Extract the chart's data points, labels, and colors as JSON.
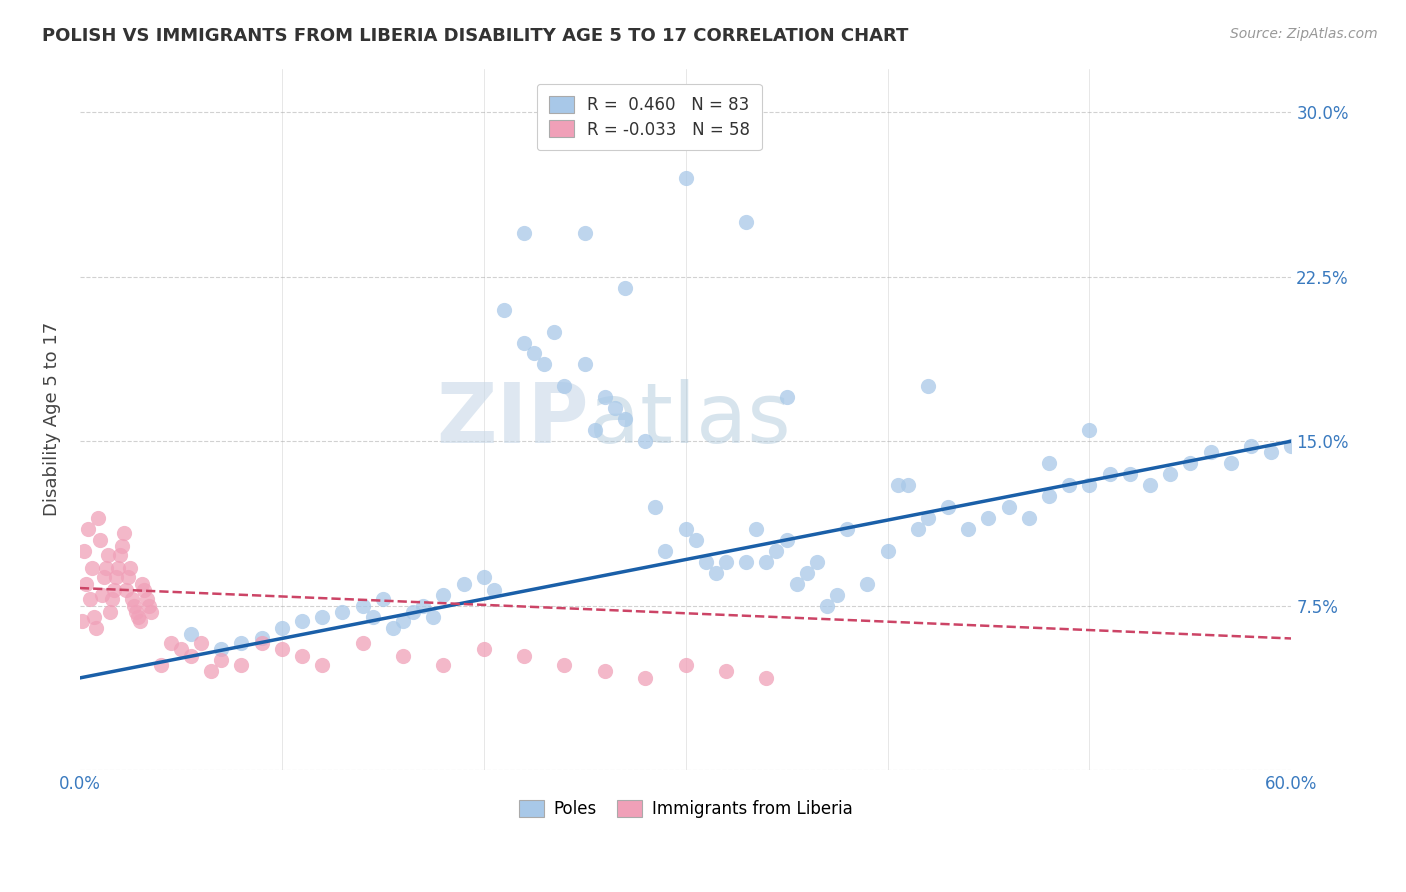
{
  "title": "POLISH VS IMMIGRANTS FROM LIBERIA DISABILITY AGE 5 TO 17 CORRELATION CHART",
  "source": "Source: ZipAtlas.com",
  "ylabel": "Disability Age 5 to 17",
  "x_min": 0.0,
  "x_max": 0.6,
  "y_min": 0.0,
  "y_max": 0.32,
  "x_ticks": [
    0.0,
    0.1,
    0.2,
    0.3,
    0.4,
    0.5,
    0.6
  ],
  "x_tick_labels": [
    "0.0%",
    "",
    "",
    "",
    "",
    "",
    "60.0%"
  ],
  "y_ticks": [
    0.0,
    0.075,
    0.15,
    0.225,
    0.3
  ],
  "y_tick_labels": [
    "",
    "7.5%",
    "15.0%",
    "22.5%",
    "30.0%"
  ],
  "blue_R": 0.46,
  "blue_N": 83,
  "pink_R": -0.033,
  "pink_N": 58,
  "blue_color": "#a8c8e8",
  "pink_color": "#f0a0b8",
  "blue_line_color": "#1a5fa8",
  "pink_line_color": "#cc4466",
  "watermark_zip": "ZIP",
  "watermark_atlas": "atlas",
  "legend_blue_label": "Poles",
  "legend_pink_label": "Immigrants from Liberia",
  "blue_scatter_x": [
    0.055,
    0.07,
    0.08,
    0.09,
    0.1,
    0.11,
    0.12,
    0.13,
    0.14,
    0.145,
    0.15,
    0.155,
    0.16,
    0.165,
    0.17,
    0.175,
    0.18,
    0.19,
    0.2,
    0.205,
    0.21,
    0.22,
    0.225,
    0.23,
    0.235,
    0.24,
    0.25,
    0.255,
    0.26,
    0.265,
    0.27,
    0.28,
    0.285,
    0.29,
    0.3,
    0.305,
    0.31,
    0.315,
    0.32,
    0.33,
    0.335,
    0.34,
    0.345,
    0.35,
    0.355,
    0.36,
    0.365,
    0.37,
    0.375,
    0.38,
    0.39,
    0.4,
    0.405,
    0.41,
    0.415,
    0.42,
    0.43,
    0.44,
    0.45,
    0.46,
    0.47,
    0.48,
    0.49,
    0.5,
    0.51,
    0.52,
    0.53,
    0.54,
    0.55,
    0.56,
    0.57,
    0.58,
    0.59,
    0.6,
    0.3,
    0.33,
    0.22,
    0.25,
    0.27,
    0.35,
    0.42,
    0.5,
    0.48
  ],
  "blue_scatter_y": [
    0.062,
    0.055,
    0.058,
    0.06,
    0.065,
    0.068,
    0.07,
    0.072,
    0.075,
    0.07,
    0.078,
    0.065,
    0.068,
    0.072,
    0.075,
    0.07,
    0.08,
    0.085,
    0.088,
    0.082,
    0.21,
    0.195,
    0.19,
    0.185,
    0.2,
    0.175,
    0.185,
    0.155,
    0.17,
    0.165,
    0.16,
    0.15,
    0.12,
    0.1,
    0.11,
    0.105,
    0.095,
    0.09,
    0.095,
    0.095,
    0.11,
    0.095,
    0.1,
    0.105,
    0.085,
    0.09,
    0.095,
    0.075,
    0.08,
    0.11,
    0.085,
    0.1,
    0.13,
    0.13,
    0.11,
    0.115,
    0.12,
    0.11,
    0.115,
    0.12,
    0.115,
    0.125,
    0.13,
    0.13,
    0.135,
    0.135,
    0.13,
    0.135,
    0.14,
    0.145,
    0.14,
    0.148,
    0.145,
    0.148,
    0.27,
    0.25,
    0.245,
    0.245,
    0.22,
    0.17,
    0.175,
    0.155,
    0.14
  ],
  "pink_scatter_x": [
    0.001,
    0.002,
    0.003,
    0.004,
    0.005,
    0.006,
    0.007,
    0.008,
    0.009,
    0.01,
    0.011,
    0.012,
    0.013,
    0.014,
    0.015,
    0.016,
    0.017,
    0.018,
    0.019,
    0.02,
    0.021,
    0.022,
    0.023,
    0.024,
    0.025,
    0.026,
    0.027,
    0.028,
    0.029,
    0.03,
    0.031,
    0.032,
    0.033,
    0.034,
    0.035,
    0.04,
    0.045,
    0.05,
    0.055,
    0.06,
    0.065,
    0.07,
    0.08,
    0.09,
    0.1,
    0.11,
    0.12,
    0.14,
    0.16,
    0.18,
    0.2,
    0.22,
    0.24,
    0.26,
    0.28,
    0.3,
    0.32,
    0.34
  ],
  "pink_scatter_y": [
    0.068,
    0.1,
    0.085,
    0.11,
    0.078,
    0.092,
    0.07,
    0.065,
    0.115,
    0.105,
    0.08,
    0.088,
    0.092,
    0.098,
    0.072,
    0.078,
    0.082,
    0.088,
    0.092,
    0.098,
    0.102,
    0.108,
    0.082,
    0.088,
    0.092,
    0.078,
    0.075,
    0.072,
    0.07,
    0.068,
    0.085,
    0.082,
    0.078,
    0.075,
    0.072,
    0.048,
    0.058,
    0.055,
    0.052,
    0.058,
    0.045,
    0.05,
    0.048,
    0.058,
    0.055,
    0.052,
    0.048,
    0.058,
    0.052,
    0.048,
    0.055,
    0.052,
    0.048,
    0.045,
    0.042,
    0.048,
    0.045,
    0.042
  ],
  "blue_trend_x": [
    0.0,
    0.6
  ],
  "blue_trend_y": [
    0.042,
    0.15
  ],
  "pink_trend_x": [
    0.0,
    0.6
  ],
  "pink_trend_y": [
    0.083,
    0.06
  ]
}
